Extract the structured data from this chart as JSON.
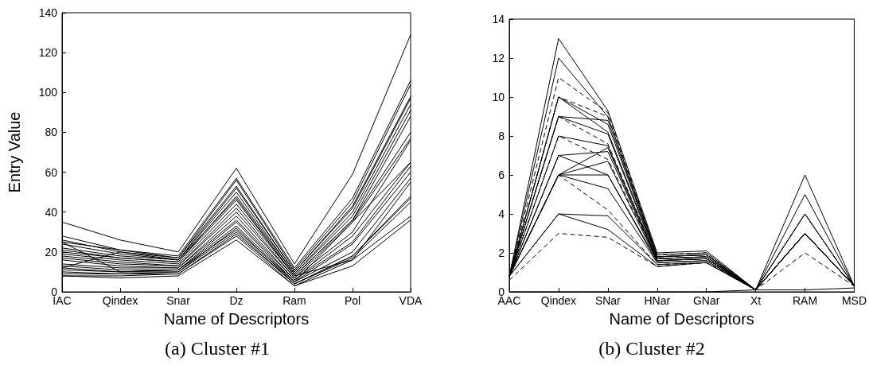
{
  "chart_data": [
    {
      "type": "line",
      "title": "(a) Cluster #1",
      "xlabel": "Name of Descriptors",
      "ylabel": "Entry Value",
      "categories": [
        "IAC",
        "Qindex",
        "Snar",
        "Dz",
        "Ram",
        "Pol",
        "VDA"
      ],
      "ylim": [
        0,
        140
      ],
      "yticks": [
        0,
        20,
        40,
        60,
        80,
        100,
        120,
        140
      ],
      "grid": false,
      "marker": "none",
      "line_style": "solid",
      "series": [
        {
          "color": "#000000",
          "values": [
            35,
            26,
            20,
            62,
            14,
            59,
            129
          ]
        },
        {
          "color": "#000000",
          "values": [
            28,
            21,
            18,
            57,
            12,
            47,
            106
          ]
        },
        {
          "color": "#000000",
          "values": [
            25,
            21,
            17,
            56,
            11,
            45,
            104
          ]
        },
        {
          "color": "#000000",
          "values": [
            26,
            20,
            17,
            53,
            10,
            43,
            98
          ]
        },
        {
          "color": "#000000",
          "values": [
            24,
            19,
            16,
            52,
            10,
            42,
            97
          ]
        },
        {
          "color": "#000000",
          "values": [
            22,
            18,
            16,
            50,
            9,
            40,
            94
          ]
        },
        {
          "color": "#000000",
          "values": [
            21,
            17,
            15,
            48,
            9,
            38,
            91
          ]
        },
        {
          "color": "#000000",
          "values": [
            20,
            17,
            15,
            46,
            8,
            36,
            88
          ]
        },
        {
          "color": "#000000",
          "values": [
            19,
            16,
            14,
            44,
            8,
            36,
            80
          ]
        },
        {
          "color": "#000000",
          "values": [
            18,
            15,
            13,
            42,
            7,
            35,
            77
          ]
        },
        {
          "color": "#000000",
          "values": [
            17,
            14,
            13,
            40,
            7,
            30,
            76
          ]
        },
        {
          "color": "#000000",
          "values": [
            16,
            13,
            12,
            38,
            6,
            28,
            65
          ]
        },
        {
          "color": "#000000",
          "values": [
            14,
            12,
            12,
            36,
            6,
            25,
            63
          ]
        },
        {
          "color": "#000000",
          "values": [
            13,
            11,
            11,
            35,
            5,
            24,
            60
          ]
        },
        {
          "color": "#000000",
          "values": [
            12,
            10,
            11,
            33,
            5,
            20,
            57
          ]
        },
        {
          "color": "#000000",
          "values": [
            11,
            10,
            10,
            32,
            4,
            18,
            48
          ]
        },
        {
          "color": "#000000",
          "values": [
            10,
            9,
            10,
            30,
            4,
            18,
            47
          ]
        },
        {
          "color": "#000000",
          "values": [
            9,
            9,
            9,
            29,
            4,
            17,
            45
          ]
        },
        {
          "color": "#000000",
          "values": [
            8,
            8,
            9,
            28,
            3,
            16,
            38
          ]
        },
        {
          "color": "#000000",
          "values": [
            8,
            7,
            8,
            26,
            3,
            13,
            36
          ]
        },
        {
          "color": "#000000",
          "values": [
            25,
            10,
            11,
            31,
            5,
            35,
            65
          ]
        },
        {
          "color": "#000000",
          "values": [
            12,
            20,
            16,
            47,
            8,
            16,
            55
          ]
        }
      ]
    },
    {
      "type": "line",
      "title": "(b) Cluster #2",
      "xlabel": "Name of Descriptors",
      "categories": [
        "AAC",
        "Qindex",
        "SNar",
        "HNar",
        "GNar",
        "Xt",
        "RAM",
        "MSD"
      ],
      "ylim": [
        0,
        14
      ],
      "yticks": [
        0,
        2,
        4,
        6,
        8,
        10,
        12,
        14
      ],
      "grid": false,
      "marker": "none",
      "line_style": "solid",
      "series": [
        {
          "color": "#000000",
          "values": [
            0.8,
            13,
            9.3,
            2.0,
            2.1,
            0.1,
            6,
            0.3
          ]
        },
        {
          "color": "#000000",
          "values": [
            0.8,
            12,
            9.0,
            1.9,
            2.0,
            0.1,
            5,
            0.3
          ]
        },
        {
          "color": "#000000",
          "line_style": "dashed",
          "values": [
            0.8,
            11,
            9.2,
            1.9,
            2.0,
            0.1,
            4,
            0.3
          ]
        },
        {
          "color": "#000000",
          "values": [
            0.8,
            10,
            8.6,
            1.8,
            1.9,
            0.1,
            4,
            0.3
          ]
        },
        {
          "color": "#000000",
          "line_style": "dashed",
          "values": [
            0.8,
            10,
            9.0,
            1.8,
            1.9,
            0.1,
            3,
            0.3
          ]
        },
        {
          "color": "#000000",
          "values": [
            0.8,
            10,
            8.2,
            1.8,
            1.9,
            0.1,
            3,
            0.3
          ]
        },
        {
          "color": "#000000",
          "values": [
            0.8,
            9,
            8.8,
            1.8,
            1.9,
            0.1,
            4,
            0.3
          ]
        },
        {
          "color": "#000000",
          "values": [
            0.8,
            9,
            8.1,
            1.7,
            1.8,
            0.1,
            3,
            0.3
          ]
        },
        {
          "color": "#000000",
          "line_style": "dashed",
          "values": [
            0.8,
            9,
            7.6,
            1.7,
            1.8,
            0.1,
            3,
            0.3
          ]
        },
        {
          "color": "#000000",
          "values": [
            0.8,
            8,
            7.5,
            1.7,
            1.8,
            0.1,
            3,
            0.3
          ]
        },
        {
          "color": "#000000",
          "line_style": "dashed",
          "values": [
            0.8,
            8,
            6.8,
            1.7,
            1.8,
            0.1,
            3,
            0.3
          ]
        },
        {
          "color": "#000000",
          "values": [
            0.8,
            7,
            7.2,
            1.6,
            1.7,
            0.1,
            3,
            0.3
          ]
        },
        {
          "color": "#000000",
          "values": [
            0.8,
            7,
            6.0,
            1.6,
            1.7,
            0.1,
            3,
            0.3
          ]
        },
        {
          "color": "#000000",
          "values": [
            0.8,
            6,
            7.4,
            1.6,
            1.7,
            0.1,
            3,
            0.3
          ]
        },
        {
          "color": "#000000",
          "values": [
            0.8,
            6,
            6.7,
            1.6,
            1.7,
            0.1,
            3,
            0.3
          ]
        },
        {
          "color": "#000000",
          "values": [
            0.8,
            6,
            6.0,
            1.5,
            1.6,
            0.1,
            3,
            0.3
          ]
        },
        {
          "color": "#000000",
          "values": [
            0.8,
            6,
            5.3,
            1.5,
            1.6,
            0.1,
            3,
            0.3
          ]
        },
        {
          "color": "#000000",
          "line_style": "dashed",
          "values": [
            0.8,
            6,
            4.2,
            1.4,
            1.5,
            0.1,
            3,
            0.3
          ]
        },
        {
          "color": "#000000",
          "values": [
            0.8,
            4,
            3.9,
            1.4,
            1.5,
            0.1,
            3,
            0.3
          ]
        },
        {
          "color": "#000000",
          "values": [
            0.8,
            4,
            3.2,
            1.3,
            1.5,
            0.1,
            3,
            0.3
          ]
        },
        {
          "color": "#000000",
          "line_style": "dashed",
          "values": [
            0.6,
            3,
            2.8,
            1.3,
            1.5,
            0.1,
            2,
            0.3
          ]
        },
        {
          "color": "#000000",
          "values": [
            0,
            0,
            0,
            0,
            0,
            0.1,
            0.1,
            0.2
          ]
        }
      ]
    }
  ]
}
